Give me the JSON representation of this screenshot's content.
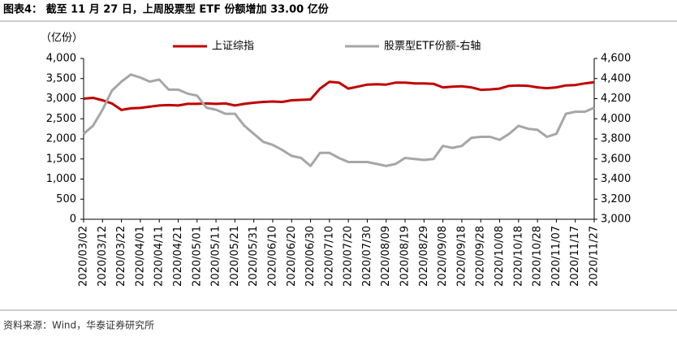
{
  "chart_data": {
    "type": "line",
    "title": "图表4：  截至 11 月 27 日，上周股票型 ETF 份额增加 33.00 亿份",
    "y_label": "（亿份）",
    "source": "资料来源：Wind，华泰证券研究所",
    "categories": [
      "2020/03/02",
      null,
      "2020/03/12",
      null,
      "2020/03/22",
      null,
      "2020/04/01",
      null,
      "2020/04/11",
      null,
      "2020/04/21",
      null,
      "2020/05/01",
      null,
      "2020/05/11",
      null,
      "2020/05/21",
      null,
      "2020/05/31",
      null,
      "2020/06/10",
      null,
      "2020/06/20",
      null,
      "2020/06/30",
      null,
      "2020/07/10",
      null,
      "2020/07/20",
      null,
      "2020/07/30",
      null,
      "2020/08/09",
      null,
      "2020/08/19",
      null,
      "2020/08/29",
      null,
      "2020/09/08",
      null,
      "2020/09/18",
      null,
      "2020/09/28",
      null,
      "2020/10/08",
      null,
      "2020/10/18",
      null,
      "2020/10/28",
      null,
      "2020/11/07",
      null,
      "2020/11/17",
      null,
      "2020/11/27"
    ],
    "series": [
      {
        "name": "上证综指",
        "color": "#c00000",
        "values": [
          3000,
          3020,
          2960,
          2880,
          2720,
          2760,
          2770,
          2800,
          2830,
          2840,
          2830,
          2870,
          2870,
          2880,
          2870,
          2880,
          2830,
          2870,
          2900,
          2920,
          2930,
          2920,
          2960,
          2970,
          2980,
          3250,
          3420,
          3400,
          3250,
          3300,
          3350,
          3360,
          3350,
          3400,
          3400,
          3380,
          3380,
          3370,
          3280,
          3300,
          3310,
          3280,
          3220,
          3230,
          3250,
          3320,
          3330,
          3320,
          3280,
          3260,
          3280,
          3330,
          3340,
          3380,
          3410
        ]
      },
      {
        "name": "股票型ETF份额-右轴",
        "color": "#a6a6a6",
        "axis": "y2",
        "values": [
          3850,
          3930,
          4090,
          4280,
          4370,
          4440,
          4410,
          4370,
          4390,
          4290,
          4290,
          4250,
          4230,
          4110,
          4090,
          4050,
          4050,
          3930,
          3850,
          3770,
          3740,
          3690,
          3630,
          3610,
          3530,
          3660,
          3660,
          3610,
          3570,
          3570,
          3570,
          3550,
          3530,
          3550,
          3610,
          3600,
          3590,
          3600,
          3730,
          3710,
          3730,
          3810,
          3820,
          3820,
          3790,
          3850,
          3930,
          3900,
          3890,
          3820,
          3850,
          4050,
          4070,
          4070,
          4110
        ]
      }
    ],
    "ylim": [
      0,
      4000
    ],
    "yticks": [
      0,
      500,
      {
        "value": 1000,
        "label": "1,000"
      },
      {
        "value": 1500,
        "label": "1,500"
      },
      {
        "value": 2000,
        "label": "2,000"
      },
      {
        "value": 2500,
        "label": "2,500"
      },
      {
        "value": 3000,
        "label": "3,000"
      },
      {
        "value": 3500,
        "label": "3,500"
      },
      {
        "value": 4000,
        "label": "4,000"
      }
    ],
    "y2lim": [
      3000,
      4600
    ],
    "y2ticks": [
      {
        "value": 3000,
        "label": "3,000"
      },
      {
        "value": 3200,
        "label": "3,200"
      },
      {
        "value": 3400,
        "label": "3,400"
      },
      {
        "value": 3600,
        "label": "3,600"
      },
      {
        "value": 3800,
        "label": "3,800"
      },
      {
        "value": 4000,
        "label": "4,000"
      },
      {
        "value": 4200,
        "label": "4,200"
      },
      {
        "value": 4400,
        "label": "4,400"
      },
      {
        "value": 4600,
        "label": "4,600"
      }
    ],
    "legend": "top",
    "grid": false
  }
}
